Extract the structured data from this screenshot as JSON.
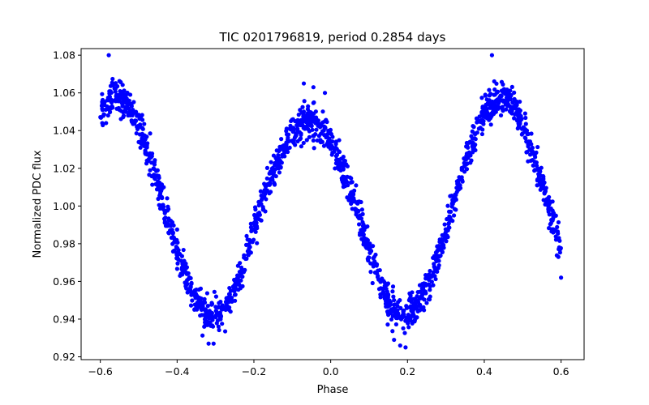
{
  "chart_data": {
    "type": "scatter",
    "title": "TIC 0201796819, period 0.2854 days",
    "xlabel": "Phase",
    "ylabel": "Normalized PDC flux",
    "xlim": [
      -0.65,
      0.66
    ],
    "ylim": [
      0.9185,
      1.0835
    ],
    "xticks": [
      -0.6,
      -0.4,
      -0.2,
      0.0,
      0.2,
      0.4,
      0.6
    ],
    "xtick_labels": [
      "−0.6",
      "−0.4",
      "−0.2",
      "0.0",
      "0.2",
      "0.4",
      "0.6"
    ],
    "yticks": [
      0.92,
      0.94,
      0.96,
      0.98,
      1.0,
      1.02,
      1.04,
      1.06,
      1.08
    ],
    "ytick_labels": [
      "0.92",
      "0.94",
      "0.96",
      "0.98",
      "1.00",
      "1.02",
      "1.04",
      "1.06",
      "1.08"
    ],
    "grid": false,
    "marker_color": "#0000ff",
    "series": [
      {
        "name": "PDC flux",
        "model": {
          "phase_range": [
            -0.6,
            0.6
          ],
          "points": 1700,
          "mean": 0.9995,
          "amplitude": 0.0575,
          "cycles_per_phase": 2,
          "peak_phase": 0.4427,
          "secondary_max_offset": -0.0125,
          "noise_sd": 0.0045
        },
        "outliers": [
          {
            "x": -0.578,
            "y": 1.08
          },
          {
            "x": 0.42,
            "y": 1.08
          },
          {
            "x": -0.07,
            "y": 1.065
          },
          {
            "x": -0.045,
            "y": 1.063
          },
          {
            "x": -0.015,
            "y": 1.06
          },
          {
            "x": -0.595,
            "y": 1.044
          },
          {
            "x": -0.585,
            "y": 1.044
          },
          {
            "x": 0.6,
            "y": 0.962
          },
          {
            "x": 0.593,
            "y": 0.973
          },
          {
            "x": 0.181,
            "y": 0.926
          },
          {
            "x": 0.165,
            "y": 0.929
          },
          {
            "x": -0.318,
            "y": 0.927
          },
          {
            "x": -0.305,
            "y": 0.927
          },
          {
            "x": 0.195,
            "y": 0.925
          },
          {
            "x": -0.495,
            "y": 1.034
          },
          {
            "x": 0.52,
            "y": 1.03
          }
        ]
      }
    ]
  }
}
